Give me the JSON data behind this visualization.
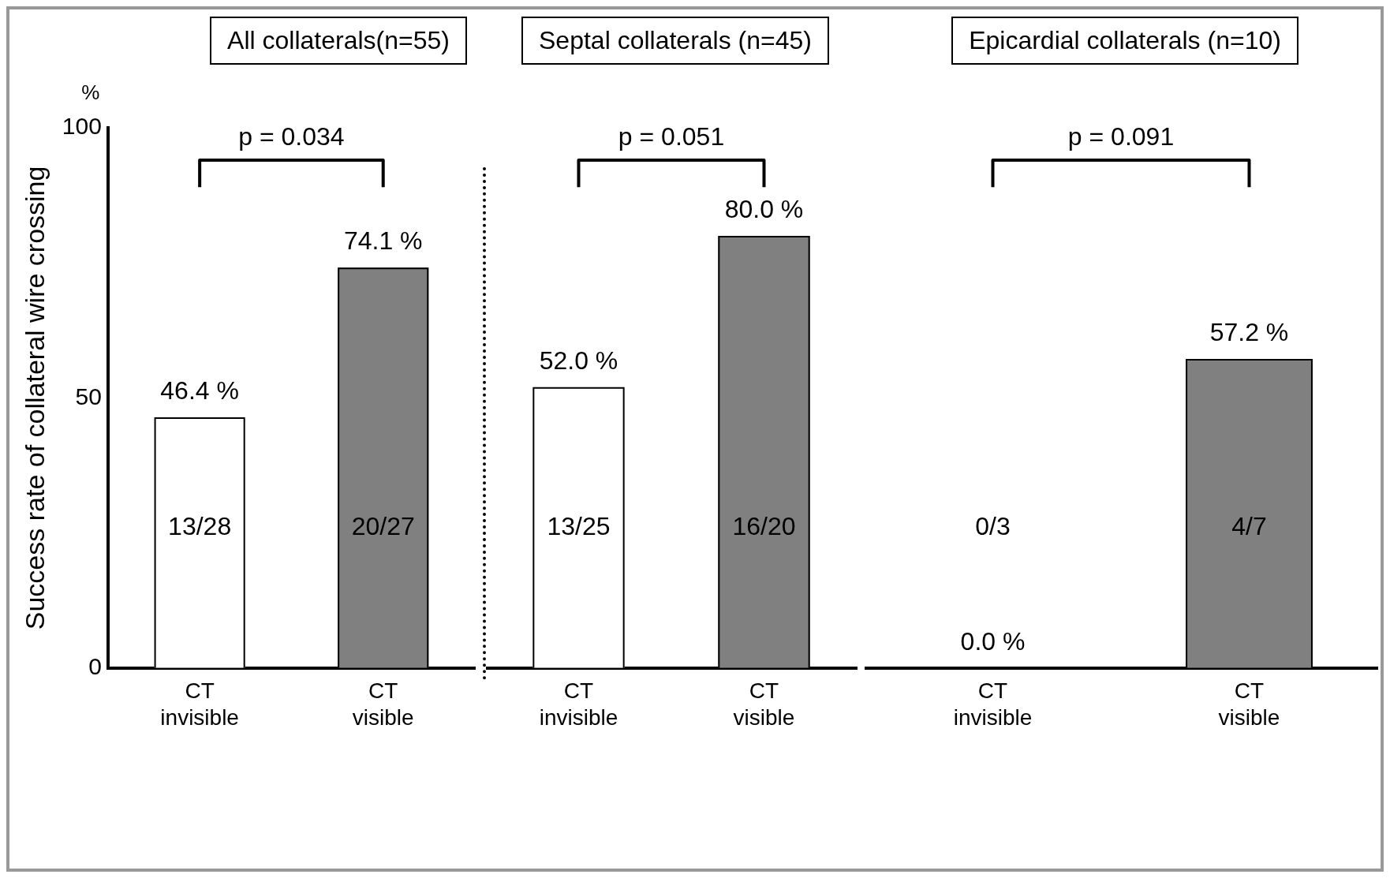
{
  "chart_data": [
    {
      "type": "bar",
      "title": "All collaterals(n=55)",
      "ylabel": "Success rate of collateral wire crossing",
      "categories": [
        "CT invisible",
        "CT visible"
      ],
      "values": [
        46.4,
        74.1
      ],
      "colors": [
        "#ffffff",
        "#808080"
      ],
      "value_labels": [
        "46.4 %",
        "74.1 %"
      ],
      "ylim": [
        0,
        100
      ],
      "yticks": [
        0,
        50,
        100
      ],
      "grid": false,
      "legend": false,
      "annotations": [
        "p = 0.034",
        "%",
        "13/28",
        "20/27"
      ]
    },
    {
      "type": "bar",
      "title": "Septal collaterals (n=45)",
      "categories": [
        "CT invisible",
        "CT visible"
      ],
      "values": [
        52.0,
        80.0
      ],
      "colors": [
        "#ffffff",
        "#808080"
      ],
      "value_labels": [
        "52.0 %",
        "80.0 %"
      ],
      "ylim": [
        0,
        100
      ],
      "tick_labels": "x",
      "grid": false,
      "legend": false,
      "annotations": [
        "p = 0.051",
        "13/25",
        "16/20"
      ]
    },
    {
      "type": "bar",
      "title": "Epicardial collaterals (n=10)",
      "categories": [
        "CT invisible",
        "CT visible"
      ],
      "values": [
        0.0,
        57.2
      ],
      "colors": [
        "#ffffff",
        "#808080"
      ],
      "value_labels": [
        "0.0 %",
        "57.2 %"
      ],
      "ylim": [
        0,
        100
      ],
      "tick_labels": "x",
      "grid": false,
      "legend": false,
      "annotations": [
        "p = 0.091",
        "0/3",
        "4/7"
      ]
    }
  ]
}
